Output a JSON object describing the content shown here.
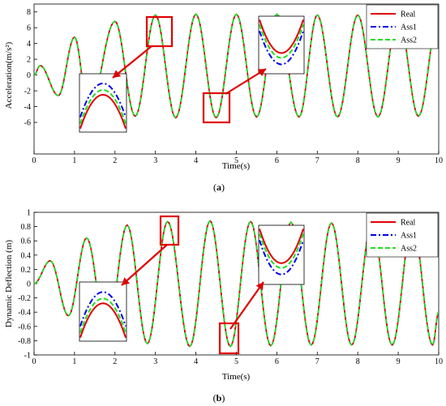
{
  "chart_data": [
    {
      "type": "line",
      "caption_letter": "a",
      "xlabel": "Time(s)",
      "ylabel": "Acceleration(m/s²)",
      "xlim": [
        0,
        10
      ],
      "ylim": [
        -10,
        9
      ],
      "x_ticks": [
        "0",
        "1",
        "2",
        "3",
        "4",
        "5",
        "6",
        "7",
        "8",
        "9",
        "10"
      ],
      "y_ticks": [
        "8",
        "6",
        "4",
        "2",
        "0",
        "-2",
        "-4",
        "-6"
      ],
      "legend_position": "top-right",
      "grid": false,
      "series": [
        {
          "name": "Real",
          "color": "#e00000",
          "style": "solid"
        },
        {
          "name": "Ass1",
          "color": "#0000e6",
          "style": "dashdot"
        },
        {
          "name": "Ass2",
          "color": "#22dd22",
          "style": "dashed"
        }
      ],
      "x": [
        0,
        0.15,
        0.6,
        1.0,
        1.35,
        2.0,
        2.5,
        3.0,
        3.5,
        4.0,
        4.5,
        5.0,
        5.5,
        6.0,
        6.55,
        7.0,
        7.5,
        8.0,
        8.5,
        9.0,
        9.5,
        10.0
      ],
      "values": [
        0,
        1.2,
        -2.6,
        4.8,
        -4.6,
        6.8,
        -5.2,
        7.6,
        -5.4,
        7.7,
        -5.4,
        7.7,
        -5.3,
        7.7,
        -5.3,
        7.6,
        -5.3,
        7.6,
        -5.3,
        7.6,
        -5.2,
        7.5
      ]
    },
    {
      "type": "line",
      "caption_letter": "b",
      "xlabel": "Time(s)",
      "ylabel": "Dynamic Deflection (m)",
      "xlim": [
        0,
        10
      ],
      "ylim": [
        -1,
        1
      ],
      "x_ticks": [
        "0",
        "1",
        "2",
        "3",
        "4",
        "5",
        "6",
        "7",
        "8",
        "9",
        "10"
      ],
      "y_ticks": [
        "1",
        "0.8",
        "0.6",
        "0.4",
        "0.2",
        "0",
        "-0.2",
        "-0.4",
        "-0.6",
        "-0.8",
        "-1"
      ],
      "legend_position": "top-right",
      "grid": false,
      "series": [
        {
          "name": "Real",
          "color": "#e00000",
          "style": "solid"
        },
        {
          "name": "Ass1",
          "color": "#0000e6",
          "style": "dashdot"
        },
        {
          "name": "Ass2",
          "color": "#22dd22",
          "style": "dashed"
        }
      ],
      "x": [
        0,
        0.4,
        0.85,
        1.3,
        1.8,
        2.3,
        2.8,
        3.3,
        3.85,
        4.35,
        4.85,
        5.35,
        5.85,
        6.35,
        6.85,
        7.35,
        7.85,
        8.35,
        8.85,
        9.35,
        9.85,
        10.0
      ],
      "values": [
        0,
        0.32,
        -0.45,
        0.64,
        -0.75,
        0.82,
        -0.84,
        0.87,
        -0.88,
        0.88,
        -0.88,
        0.87,
        -0.87,
        0.86,
        -0.86,
        0.85,
        -0.86,
        0.85,
        -0.86,
        0.85,
        -0.86,
        -0.4
      ]
    }
  ]
}
